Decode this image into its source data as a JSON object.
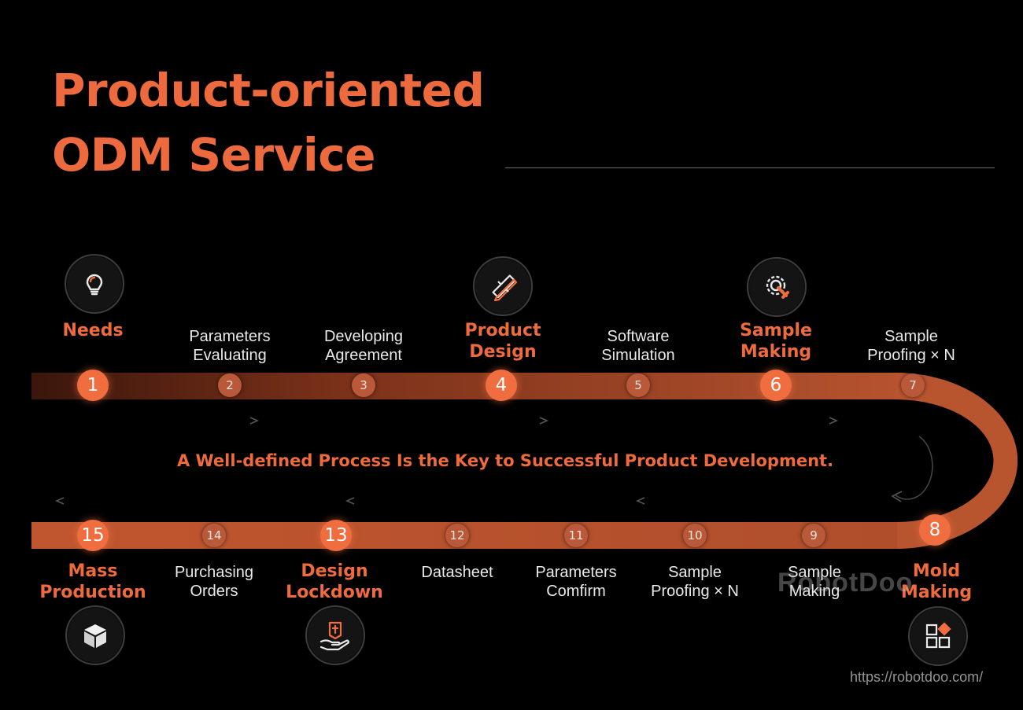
{
  "title": {
    "line1": "Product-oriented",
    "line2": "ODM Service"
  },
  "tagline": "A Well-defined Process Is the Key to Successful Product Development.",
  "watermark": "RobotDoo",
  "url": "https://robotdoo.com/",
  "colors": {
    "accent": "#ef6b3e",
    "track": "#b4532f",
    "background": "#000000"
  },
  "icons": {
    "needs": "lightbulb-icon",
    "product_design": "ruler-pencil-icon",
    "sample_making": "gear-wrench-icon",
    "mass_production": "box-icon",
    "design_lockdown": "hand-seal-icon",
    "mold_making": "grid-blocks-icon"
  },
  "steps": [
    {
      "n": "1",
      "label": [
        "Needs"
      ],
      "major": true
    },
    {
      "n": "2",
      "label": [
        "Parameters",
        "Evaluating"
      ],
      "major": false
    },
    {
      "n": "3",
      "label": [
        "Developing",
        "Agreement"
      ],
      "major": false
    },
    {
      "n": "4",
      "label": [
        "Product",
        "Design"
      ],
      "major": true
    },
    {
      "n": "5",
      "label": [
        "Software",
        "Simulation"
      ],
      "major": false
    },
    {
      "n": "6",
      "label": [
        "Sample",
        "Making"
      ],
      "major": true
    },
    {
      "n": "7",
      "label": [
        "Sample",
        "Proofing × N"
      ],
      "major": false
    },
    {
      "n": "8",
      "label": [
        "Mold",
        "Making"
      ],
      "major": true
    },
    {
      "n": "9",
      "label": [
        "Sample",
        "Making"
      ],
      "major": false
    },
    {
      "n": "10",
      "label": [
        "Sample",
        "Proofing × N"
      ],
      "major": false
    },
    {
      "n": "11",
      "label": [
        "Parameters",
        "Comfirm"
      ],
      "major": false
    },
    {
      "n": "12",
      "label": [
        "Datasheet"
      ],
      "major": false
    },
    {
      "n": "13",
      "label": [
        "Design",
        "Lockdown"
      ],
      "major": true
    },
    {
      "n": "14",
      "label": [
        "Purchasing",
        "Orders"
      ],
      "major": false
    },
    {
      "n": "15",
      "label": [
        "Mass",
        "Production"
      ],
      "major": true
    }
  ]
}
